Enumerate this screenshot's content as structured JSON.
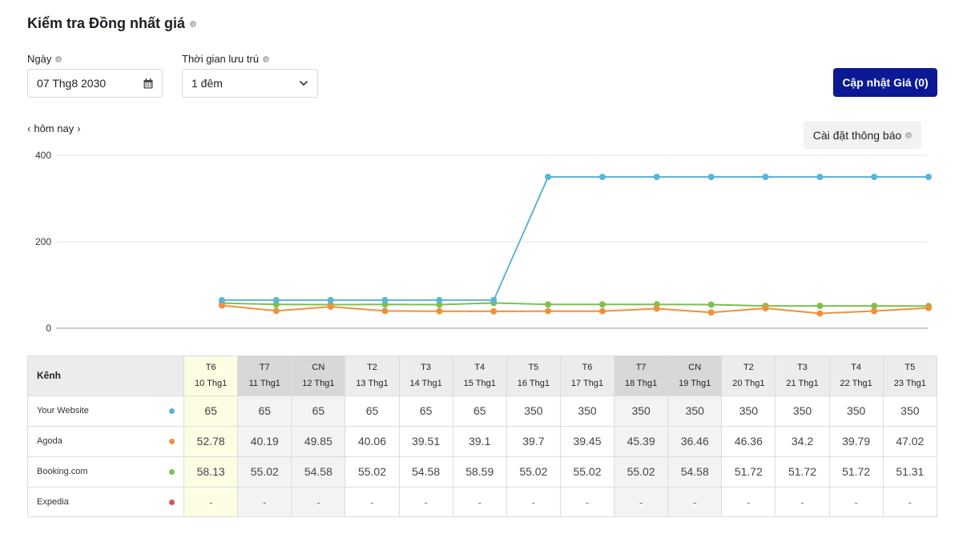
{
  "header": {
    "title": "Kiểm tra Đồng nhất giá"
  },
  "filters": {
    "date_label": "Ngày",
    "date_value": "07 Thg8 2030",
    "stay_label": "Thời gian lưu trú",
    "stay_value": "1 đêm"
  },
  "actions": {
    "update_label": "Cập nhật Giá (0)",
    "notify_label": "Cài đặt thông báo"
  },
  "nav": {
    "today_label": "hôm nay"
  },
  "colors": {
    "your_website": "#5bb4d9",
    "agoda": "#f0913a",
    "booking": "#7cc04f",
    "expedia": "#d9534f",
    "primary": "#0b1994"
  },
  "chart_data": {
    "type": "line",
    "ylim": [
      0,
      400
    ],
    "yticks": [
      "0",
      "200",
      "400"
    ],
    "x": [
      "10 Thg1",
      "11 Thg1",
      "12 Thg1",
      "13 Thg1",
      "14 Thg1",
      "15 Thg1",
      "16 Thg1",
      "17 Thg1",
      "18 Thg1",
      "19 Thg1",
      "20 Thg1",
      "21 Thg1",
      "22 Thg1",
      "23 Thg1"
    ],
    "grid": true,
    "series": [
      {
        "key": "your_website",
        "values": [
          65,
          65,
          65,
          65,
          65,
          65,
          350,
          350,
          350,
          350,
          350,
          350,
          350,
          350
        ]
      },
      {
        "key": "agoda",
        "values": [
          52.78,
          40.19,
          49.85,
          40.06,
          39.51,
          39.1,
          39.7,
          39.45,
          45.39,
          36.46,
          46.36,
          34.2,
          39.79,
          47.02
        ]
      },
      {
        "key": "booking",
        "values": [
          58.13,
          55.02,
          54.58,
          55.02,
          54.58,
          58.59,
          55.02,
          55.02,
          55.02,
          54.58,
          51.72,
          51.72,
          51.72,
          51.31
        ]
      }
    ]
  },
  "table": {
    "channel_header": "Kênh",
    "columns": [
      {
        "day": "T6",
        "date": "10 Thg1",
        "type": "today"
      },
      {
        "day": "T7",
        "date": "11 Thg1",
        "type": "weekend"
      },
      {
        "day": "CN",
        "date": "12 Thg1",
        "type": "weekend"
      },
      {
        "day": "T2",
        "date": "13 Thg1",
        "type": "normal"
      },
      {
        "day": "T3",
        "date": "14 Thg1",
        "type": "normal"
      },
      {
        "day": "T4",
        "date": "15 Thg1",
        "type": "normal"
      },
      {
        "day": "T5",
        "date": "16 Thg1",
        "type": "normal"
      },
      {
        "day": "T6",
        "date": "17 Thg1",
        "type": "normal"
      },
      {
        "day": "T7",
        "date": "18 Thg1",
        "type": "weekend"
      },
      {
        "day": "CN",
        "date": "19 Thg1",
        "type": "weekend"
      },
      {
        "day": "T2",
        "date": "20 Thg1",
        "type": "normal"
      },
      {
        "day": "T3",
        "date": "21 Thg1",
        "type": "normal"
      },
      {
        "day": "T4",
        "date": "22 Thg1",
        "type": "normal"
      },
      {
        "day": "T5",
        "date": "23 Thg1",
        "type": "normal"
      }
    ],
    "rows": [
      {
        "channel": "Your Website",
        "color": "#5bb4d9",
        "values": [
          "65",
          "65",
          "65",
          "65",
          "65",
          "65",
          "350",
          "350",
          "350",
          "350",
          "350",
          "350",
          "350",
          "350"
        ]
      },
      {
        "channel": "Agoda",
        "color": "#f0913a",
        "values": [
          "52.78",
          "40.19",
          "49.85",
          "40.06",
          "39.51",
          "39.1",
          "39.7",
          "39.45",
          "45.39",
          "36.46",
          "46.36",
          "34.2",
          "39.79",
          "47.02"
        ]
      },
      {
        "channel": "Booking.com",
        "color": "#7cc04f",
        "values": [
          "58.13",
          "55.02",
          "54.58",
          "55.02",
          "54.58",
          "58.59",
          "55.02",
          "55.02",
          "55.02",
          "54.58",
          "51.72",
          "51.72",
          "51.72",
          "51.31"
        ]
      },
      {
        "channel": "Expedia",
        "color": "#d9534f",
        "values": [
          "-",
          "-",
          "-",
          "-",
          "-",
          "-",
          "-",
          "-",
          "-",
          "-",
          "-",
          "-",
          "-",
          "-"
        ]
      }
    ]
  }
}
